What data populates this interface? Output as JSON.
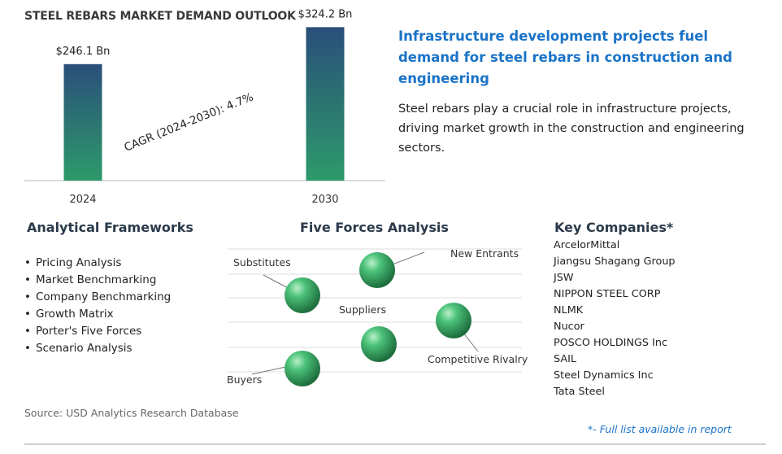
{
  "chart_data": {
    "type": "bar",
    "title": "STEEL REBARS MARKET DEMAND OUTLOOK",
    "categories": [
      "2024",
      "2030"
    ],
    "values": [
      246.1,
      324.2
    ],
    "value_labels": [
      "$246.1 Bn",
      "$324.2 Bn"
    ],
    "unit": "Bn",
    "ylim": [
      0,
      330
    ],
    "grid": false,
    "legend": "none",
    "annotation": "CAGR (2024-2030):   4.7%"
  },
  "headline": "Infrastructure development projects fuel demand for steel rebars in construction and engineering",
  "description": "Steel rebars play a crucial role in infrastructure projects, driving market growth in the construction and engineering sectors.",
  "frameworks": {
    "title": "Analytical Frameworks",
    "items": [
      "Pricing Analysis",
      "Market Benchmarking",
      "Company Benchmarking",
      "Growth Matrix",
      "Porter's Five Forces",
      "Scenario Analysis"
    ]
  },
  "five_forces": {
    "title": "Five Forces Analysis",
    "labels": {
      "new_entrants": "New Entrants",
      "substitutes": "Substitutes",
      "suppliers": "Suppliers",
      "competitive_rivalry": "Competitive Rivalry",
      "buyers": "Buyers"
    },
    "sphere_color": "#3aa35e"
  },
  "companies": {
    "title": "Key Companies*",
    "items": [
      "ArcelorMittal",
      "Jiangsu Shagang Group",
      "JSW",
      "NIPPON STEEL CORP",
      "NLMK",
      "Nucor",
      "POSCO HOLDINGS Inc",
      "SAIL",
      "Steel Dynamics Inc",
      "Tata Steel"
    ]
  },
  "source": "Source: USD Analytics Research Database",
  "footnote": "*- Full list available in report",
  "colors": {
    "bar_top": "#2a4f7a",
    "bar_bottom": "#2d9a6a",
    "headline": "#1a73c7"
  }
}
